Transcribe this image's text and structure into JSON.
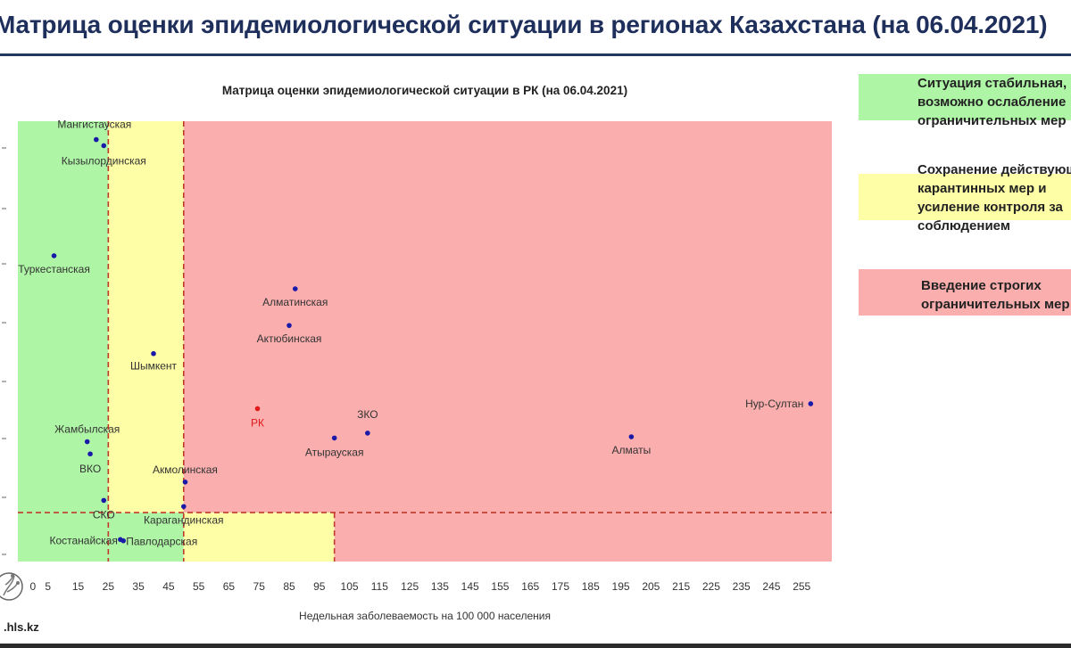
{
  "page": {
    "title": "Матрица оценки эпидемиологической ситуации в регионах Казахстана (на 06.04.2021)",
    "site": ".hls.kz"
  },
  "legend": [
    {
      "color": "#aef5a5",
      "text": "Ситуация стабильная,\nвозможно ослабление\nограничительных мер"
    },
    {
      "color": "#fefea6",
      "text": "Сохранение действующих\nкарантинных мер и\nусиление контроля за\nсоблюдением"
    },
    {
      "color": "#fbaeae",
      "text": "Введение строгих\nограничительных мер"
    }
  ],
  "chart_data": {
    "type": "scatter",
    "title": "Матрица оценки эпидемиологической ситуации в РК (на 06.04.2021)",
    "xlabel": "Недельная заболеваемость на 100 000 населения",
    "ylabel": "",
    "xlim": [
      -5,
      265
    ],
    "x_ticks": [
      0,
      5,
      15,
      25,
      35,
      45,
      55,
      65,
      75,
      85,
      95,
      105,
      115,
      125,
      135,
      145,
      155,
      165,
      175,
      185,
      195,
      205,
      215,
      225,
      235,
      245,
      255
    ],
    "zones": {
      "green": "#aef5a5",
      "yellow": "#fefea6",
      "red": "#fbaeae",
      "divider": "#c0392b"
    },
    "thresholds": {
      "x_green": 25,
      "x_yellow": 50,
      "x_lower_yellow": 100
    },
    "grid": false,
    "legend": "right",
    "points": [
      {
        "name": "Мангистауская",
        "x": 21,
        "y": 1.205
      },
      {
        "name": "Кызылординская",
        "x": 23.5,
        "y": 1.2
      },
      {
        "name": "Туркестанская",
        "x": 7,
        "y": 1.11
      },
      {
        "name": "Алматинская",
        "x": 87,
        "y": 1.083
      },
      {
        "name": "Актюбинская",
        "x": 85,
        "y": 1.053
      },
      {
        "name": "Шымкент",
        "x": 40,
        "y": 1.03
      },
      {
        "name": "РК",
        "x": 74.5,
        "y": 0.985,
        "highlight": true
      },
      {
        "name": "Нур-Султан",
        "x": 258,
        "y": 0.989
      },
      {
        "name": "ЗКО",
        "x": 111,
        "y": 0.965
      },
      {
        "name": "Атырауская",
        "x": 100,
        "y": 0.961
      },
      {
        "name": "Алматы",
        "x": 198.5,
        "y": 0.962
      },
      {
        "name": "Жамбылская",
        "x": 18,
        "y": 0.958
      },
      {
        "name": "ВКО",
        "x": 19,
        "y": 0.948
      },
      {
        "name": "Акмолинская",
        "x": 50.5,
        "y": 0.925
      },
      {
        "name": "СКО",
        "x": 23.5,
        "y": 0.91
      },
      {
        "name": "Карагандинская",
        "x": 50,
        "y": 0.905
      },
      {
        "name": "Костанайская",
        "x": 29,
        "y": 0.878
      },
      {
        "name": "Павлодарская",
        "x": 30,
        "y": 0.877
      }
    ]
  }
}
